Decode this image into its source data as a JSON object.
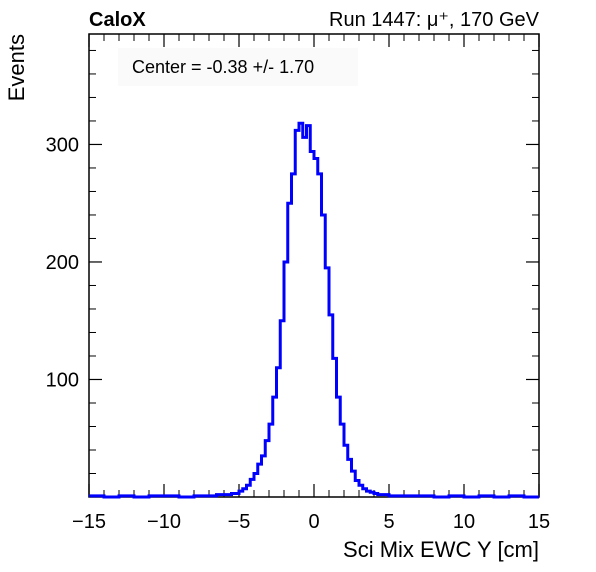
{
  "header": {
    "experiment": "CaloX",
    "run_info": "Run 1447:   μ⁺, 170 GeV"
  },
  "stats_box": {
    "text": "Center = -0.38 +/- 1.70"
  },
  "colors": {
    "line": "#0000ff",
    "axis": "#000000",
    "background": "#ffffff"
  },
  "chart_data": {
    "type": "line",
    "style": "step-histogram",
    "xlabel": "Sci Mix EWC Y [cm]",
    "ylabel": "Events",
    "xlim": [
      -15,
      15
    ],
    "ylim": [
      0,
      394
    ],
    "x_ticks": [
      -15,
      -10,
      -5,
      0,
      5,
      10,
      15
    ],
    "x_tick_labels": [
      "−15",
      "−10",
      "−5",
      "0",
      "5",
      "10",
      "15"
    ],
    "y_ticks": [
      100,
      200,
      300
    ],
    "y_tick_labels": [
      "100",
      "200",
      "300"
    ],
    "grid": false,
    "legend": "none",
    "series": [
      {
        "x": [
          -15.0,
          -14.0,
          -13.0,
          -12.0,
          -11.0,
          -10.0,
          -9.0,
          -8.0,
          -7.0,
          -6.5,
          -6.0,
          -5.5,
          -5.0,
          -4.75,
          -4.5,
          -4.25,
          -4.0,
          -3.75,
          -3.5,
          -3.25,
          -3.0,
          -2.75,
          -2.5,
          -2.25,
          -2.0,
          -1.75,
          -1.5,
          -1.25,
          -1.0,
          -0.75,
          -0.5,
          -0.25,
          0.0,
          0.25,
          0.5,
          0.75,
          1.0,
          1.25,
          1.5,
          1.75,
          2.0,
          2.25,
          2.5,
          2.75,
          3.0,
          3.25,
          3.5,
          3.75,
          4.0,
          4.25,
          4.5,
          5.0,
          5.5,
          6.0,
          7.0,
          8.0,
          9.0,
          10.0,
          11.0,
          12.0,
          13.0,
          14.0
        ],
        "y": [
          1,
          0,
          1,
          0,
          1,
          1,
          0,
          1,
          1,
          2,
          2,
          3,
          5,
          7,
          10,
          15,
          20,
          28,
          35,
          48,
          62,
          85,
          110,
          150,
          200,
          250,
          275,
          312,
          318,
          306,
          316,
          294,
          288,
          275,
          240,
          195,
          155,
          118,
          85,
          62,
          44,
          32,
          22,
          14,
          10,
          7,
          5,
          4,
          3,
          2,
          2,
          1,
          1,
          1,
          1,
          0,
          1,
          0,
          1,
          0,
          1,
          0
        ]
      }
    ]
  }
}
